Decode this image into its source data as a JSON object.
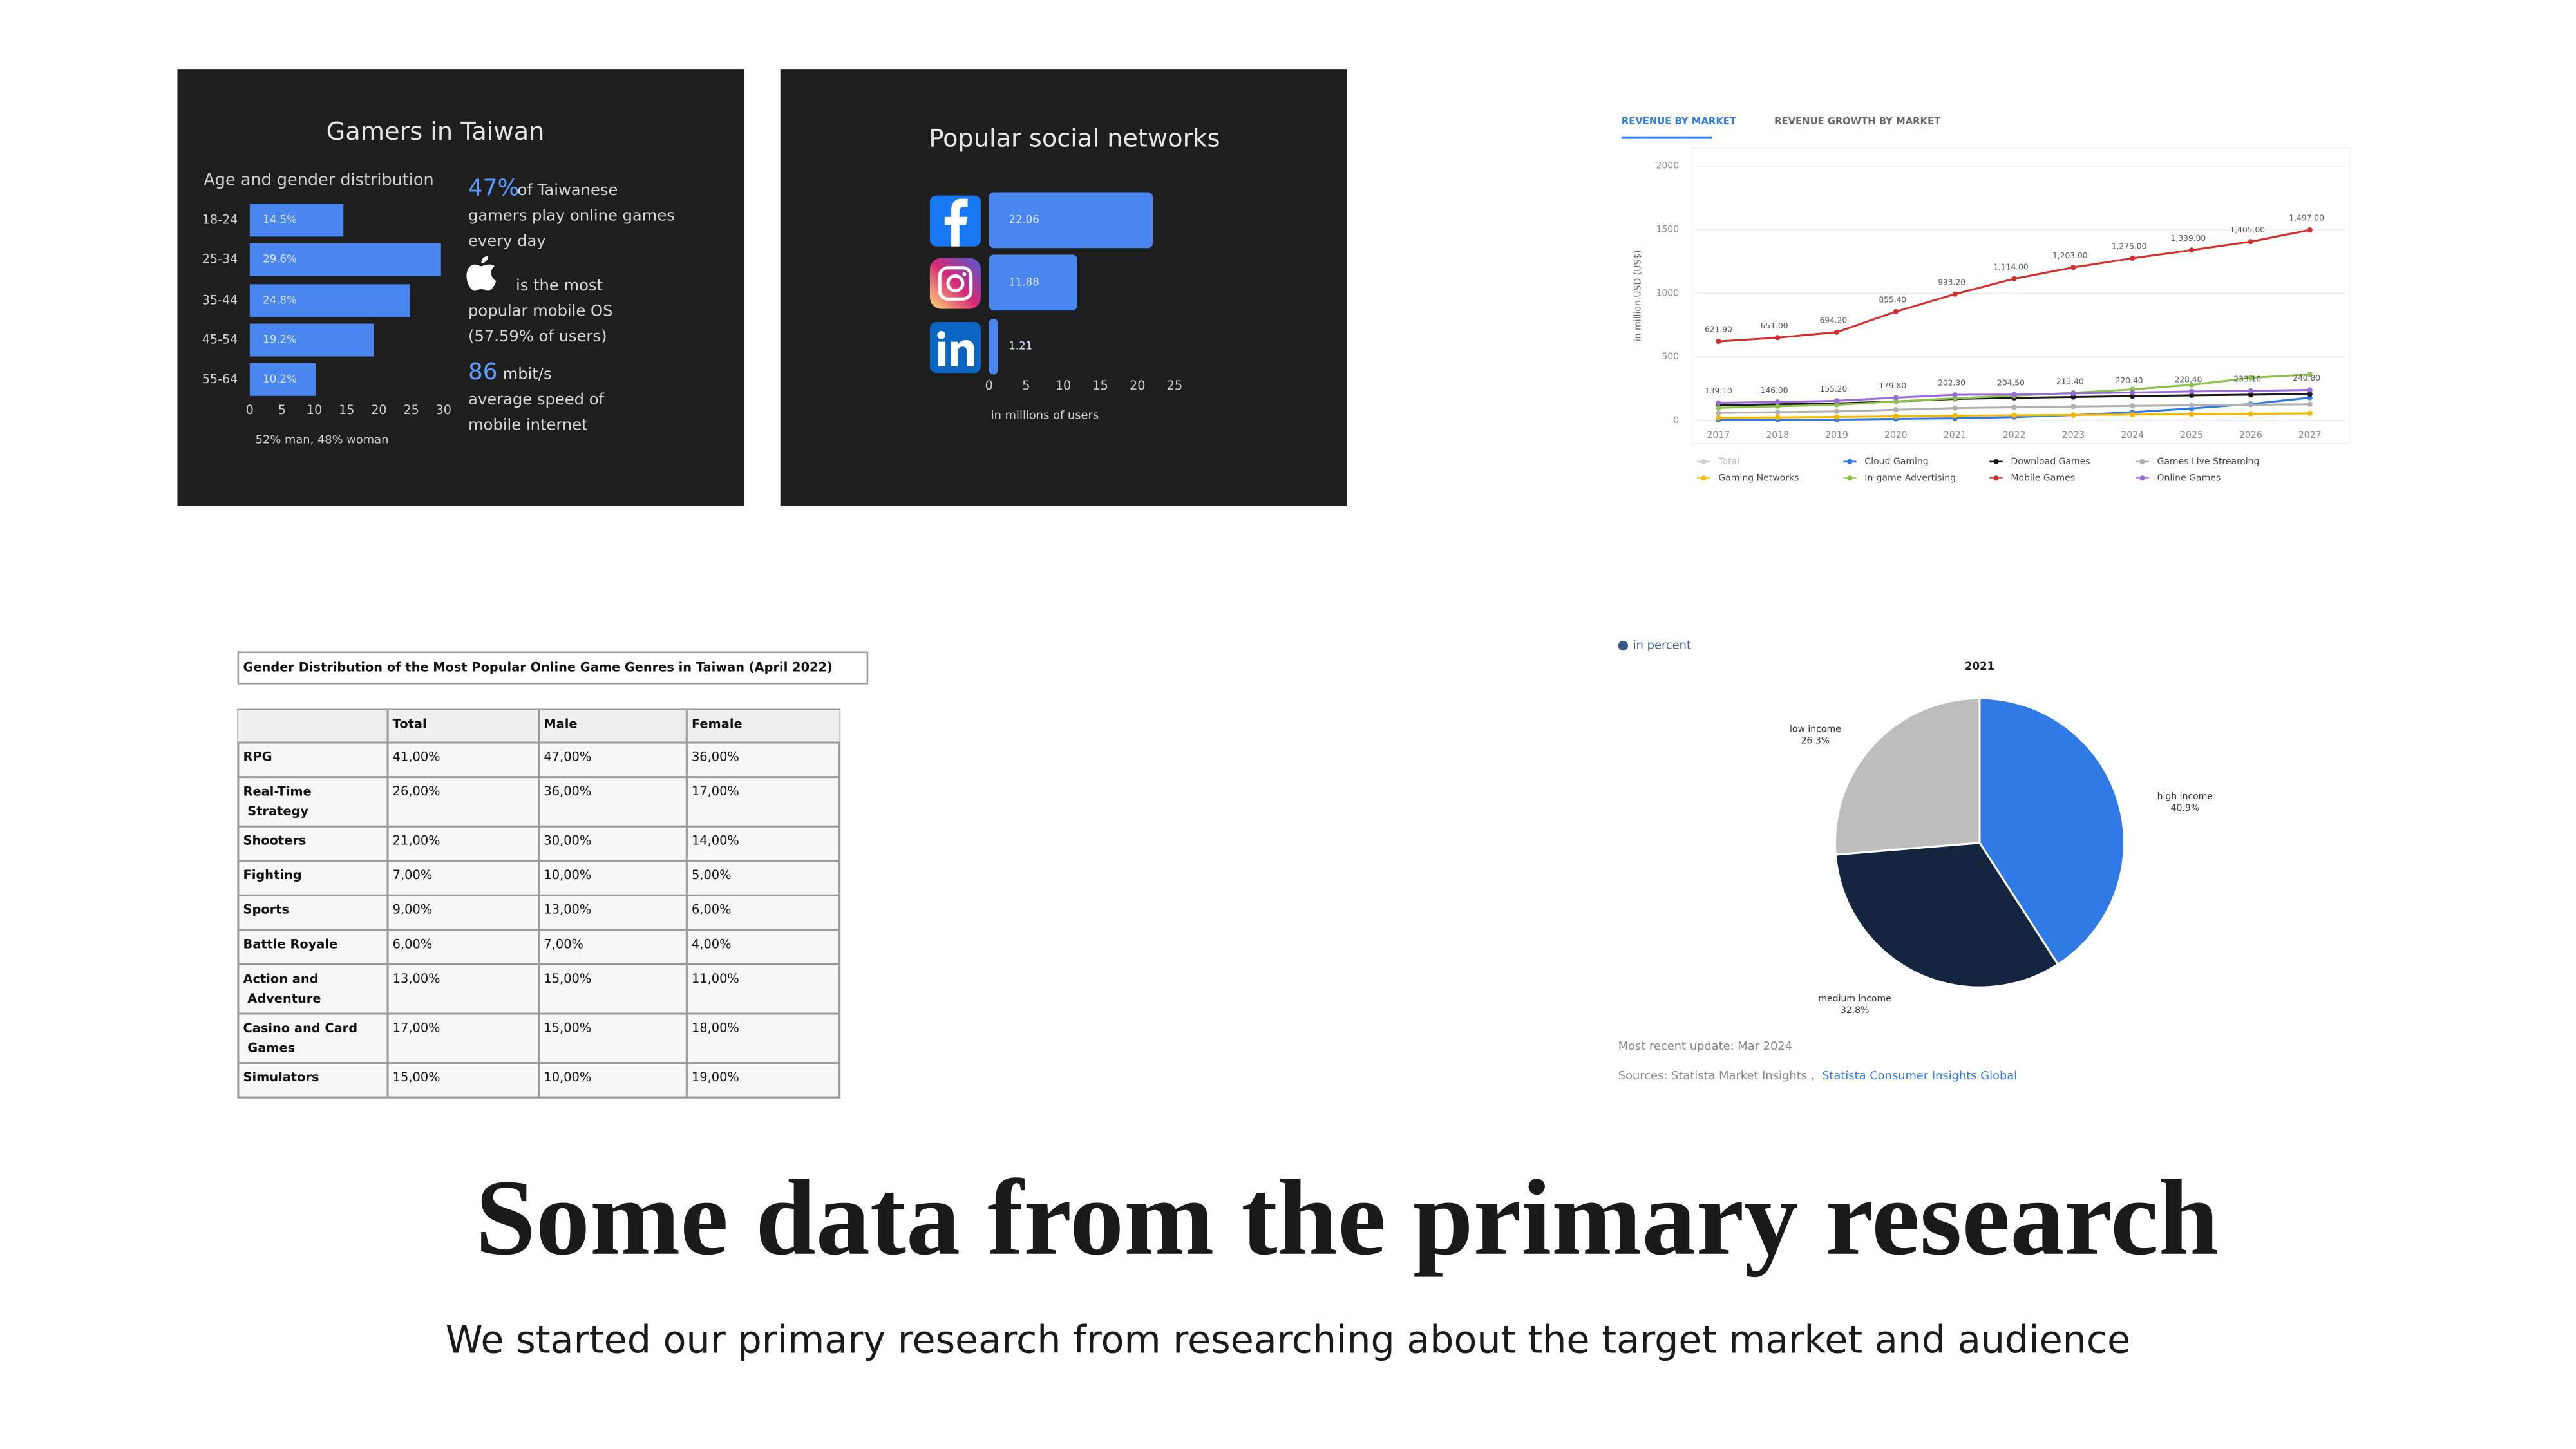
{
  "title": "Some data from the primary research",
  "subtitle": "We started our primary research from researching about the target market and audience",
  "chart_data": [
    {
      "type": "hbar",
      "title": "Gamers in Taiwan",
      "subtitle": "Age and gender distribution",
      "categories": [
        "18-24",
        "25-34",
        "35-44",
        "45-54",
        "55-64"
      ],
      "values": [
        14.5,
        29.6,
        24.8,
        19.2,
        10.2
      ],
      "value_labels": [
        "14.5%",
        "29.6%",
        "24.8%",
        "19.2%",
        "10.2%"
      ],
      "color": "#4a86f0",
      "xlim": [
        0,
        30
      ],
      "xticks": [
        0,
        5,
        10,
        15,
        20,
        25,
        30
      ],
      "xlabel": "52% man, 48% woman",
      "annotations": [
        {
          "highlight": "47%",
          "lines": [
            "of Taiwanese",
            "gamers play online games",
            "every day"
          ]
        },
        {
          "lines": [
            "is the most",
            "popular mobile OS",
            "(57.59% of users)"
          ]
        },
        {
          "highlight": "86",
          "lines": [
            "mbit/s",
            "average speed of",
            "mobile internet"
          ]
        }
      ]
    },
    {
      "type": "hbar",
      "title": "Popular social networks",
      "values": [
        22.06,
        11.88,
        1.21
      ],
      "color": "#4a86f0",
      "xlim": [
        0,
        25
      ],
      "xticks": [
        0,
        5,
        10,
        15,
        20,
        25
      ],
      "xlabel": "in millions of users"
    },
    {
      "type": "line",
      "tabs": [
        "REVENUE BY MARKET",
        "REVENUE GROWTH BY MARKET"
      ],
      "x": [
        2017,
        2018,
        2019,
        2020,
        2021,
        2022,
        2023,
        2024,
        2025,
        2026,
        2027
      ],
      "xlim": [
        2017,
        2027
      ],
      "ylim": [
        0,
        2000
      ],
      "yticks": [
        0,
        500,
        1000,
        1500,
        2000
      ],
      "ylabel": "in million USD (US$)",
      "grid": true,
      "series": [
        {
          "name": "Total",
          "color": "#cccccc",
          "visible": false,
          "values": [
            null,
            null,
            null,
            null,
            null,
            null,
            null,
            null,
            null,
            null,
            null
          ]
        },
        {
          "name": "Cloud Gaming",
          "color": "#2f7ae5",
          "visible": true,
          "values": [
            4.62,
            5.86,
            8.02,
            13.15,
            17.31,
            27.32,
            42.75,
            65.52,
            95.16,
            130,
            180
          ]
        },
        {
          "name": "Download Games",
          "color": "#1a1a1a",
          "visible": true,
          "values": [
            120,
            128,
            135,
            150,
            170,
            178,
            185,
            192,
            198,
            203,
            208
          ]
        },
        {
          "name": "Games Live Streaming",
          "color": "#b0b0b0",
          "visible": true,
          "values": [
            60,
            66,
            72,
            85,
            98,
            104,
            110,
            115,
            120,
            124,
            128
          ]
        },
        {
          "name": "Gaming Networks",
          "color": "#f5b800",
          "visible": true,
          "values": [
            22,
            25,
            28,
            33,
            38,
            41,
            44,
            47,
            50,
            53,
            56
          ]
        },
        {
          "name": "In-game Advertising",
          "color": "#8bc34a",
          "visible": true,
          "values": [
            100,
            112,
            124,
            150,
            175,
            195,
            218,
            245,
            280,
            335.8,
            362.3
          ]
        },
        {
          "name": "Mobile Games",
          "color": "#d32f2f",
          "visible": true,
          "values": [
            621.9,
            651,
            694.2,
            855.4,
            993.2,
            1114,
            1203,
            1275,
            1339,
            1405,
            1497
          ],
          "value_labels": [
            "621.90",
            "651.00",
            "694.20",
            "855.40",
            "993.20",
            "1,114.00",
            "1,203.00",
            "1,275.00",
            "1,339.00",
            "1,405.00",
            "1,497.00"
          ]
        },
        {
          "name": "Online Games",
          "color": "#9c6ade",
          "visible": true,
          "values": [
            139.1,
            146,
            155.2,
            179.8,
            202.3,
            204.5,
            213.4,
            220.4,
            228.4,
            233.1,
            240.8
          ],
          "value_labels": [
            "139.10",
            "146.00",
            "155.20",
            "179.80",
            "202.30",
            "204.50",
            "213.40",
            "220.40",
            "228.40",
            "233.10",
            "240.80"
          ]
        }
      ]
    },
    {
      "type": "pie",
      "title": "2021",
      "subtitle": "in percent",
      "categories": [
        "high income",
        "medium income",
        "low income"
      ],
      "values": [
        40.9,
        32.8,
        26.3
      ],
      "value_labels": [
        "40.9%",
        "32.8%",
        "26.3%"
      ],
      "colors": [
        "#2f7ae5",
        "#14263f",
        "#bdbdbd"
      ],
      "footer": "Most recent update: Mar 2024",
      "source_prefix": "Sources: Statista Market Insights ,",
      "source_link": "Statista Consumer Insights Global"
    }
  ],
  "table": {
    "caption": "Gender Distribution of the Most Popular Online Game Genres in Taiwan (April 2022)",
    "columns": [
      "Total",
      "Male",
      "Female"
    ],
    "rows": [
      [
        "RPG",
        "41,00%",
        "47,00%",
        "36,00%"
      ],
      [
        "Real-Time Strategy",
        "26,00%",
        "36,00%",
        "17,00%"
      ],
      [
        "Shooters",
        "21,00%",
        "30,00%",
        "14,00%"
      ],
      [
        "Fighting",
        "7,00%",
        "10,00%",
        "5,00%"
      ],
      [
        "Sports",
        "9,00%",
        "13,00%",
        "6,00%"
      ],
      [
        "Battle Royale",
        "6,00%",
        "7,00%",
        "4,00%"
      ],
      [
        "Action and Adventure",
        "13,00%",
        "15,00%",
        "11,00%"
      ],
      [
        "Casino and Card Games",
        "17,00%",
        "15,00%",
        "18,00%"
      ],
      [
        "Simulators",
        "15,00%",
        "10,00%",
        "19,00%"
      ]
    ]
  }
}
